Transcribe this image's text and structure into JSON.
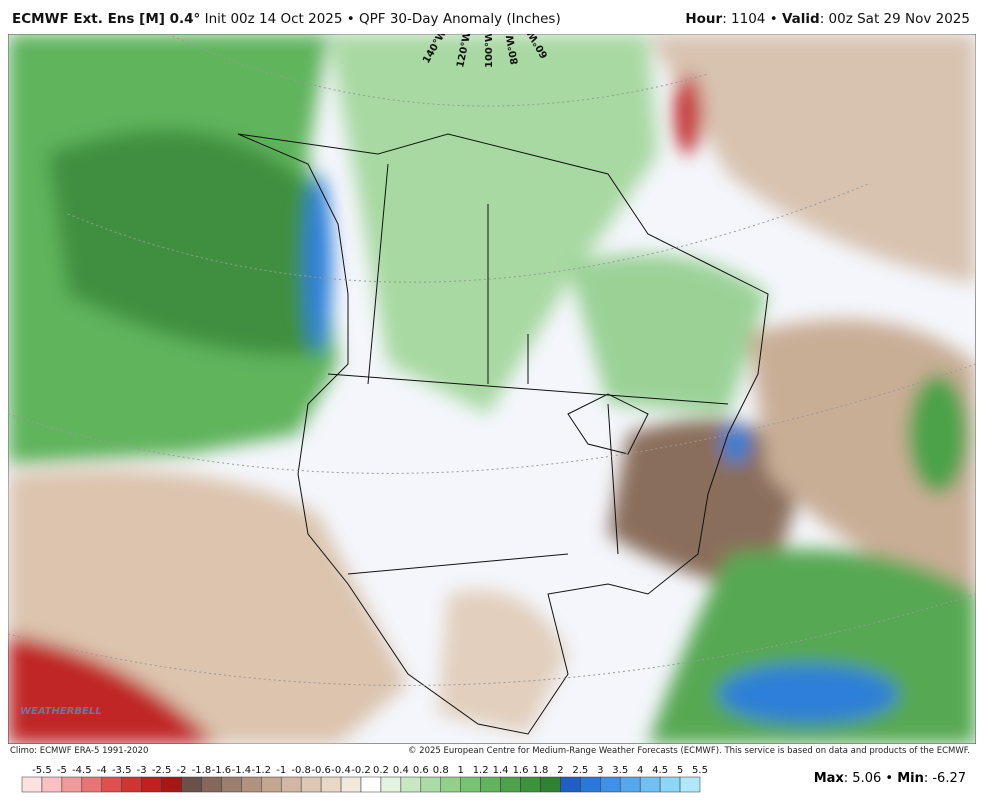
{
  "header": {
    "model": "ECMWF Ext. Ens [M] 0.4°",
    "info": " Init 00z 14 Oct 2025 • QPF 30-Day Anomaly (Inches)",
    "hour_label": "Hour",
    "hour_value": ": 1104 • ",
    "valid_label": "Valid",
    "valid_value": ": 00z Sat 29 Nov 2025"
  },
  "map": {
    "longitudes": [
      "140°W",
      "120°W",
      "100°W",
      "80°W",
      "60°W"
    ],
    "watermark": "WEATHERBELL"
  },
  "footer": {
    "climo": "Climo: ECMWF ERA-5 1991-2020",
    "copyright": "© 2025 European Centre for Medium-Range Weather Forecasts (ECMWF). This service is based on data and products of the ECMWF."
  },
  "legend": {
    "labels": [
      "-5.5",
      "-5",
      "-4.5",
      "-4",
      "-3.5",
      "-3",
      "-2.5",
      "-2",
      "-1.8",
      "-1.6",
      "-1.4",
      "-1.2",
      "-1",
      "-0.8",
      "-0.6",
      "-0.4",
      "-0.2",
      "0.2",
      "0.4",
      "0.6",
      "0.8",
      "1",
      "1.2",
      "1.4",
      "1.6",
      "1.8",
      "2",
      "2.5",
      "3",
      "3.5",
      "4",
      "4.5",
      "5",
      "5.5"
    ],
    "colors": [
      "#fde0e0",
      "#f8c0c0",
      "#f09a9a",
      "#e87474",
      "#e05050",
      "#d03434",
      "#c02020",
      "#a81616",
      "#6b5248",
      "#85685a",
      "#9c7e6c",
      "#b0927e",
      "#c2a690",
      "#d2b8a2",
      "#dfc8b3",
      "#ead8c6",
      "#f3e8dc",
      "#ffffff",
      "#e3f3df",
      "#c8e8c2",
      "#acdca6",
      "#92d08c",
      "#78c274",
      "#62b25e",
      "#4ea24c",
      "#3e923e",
      "#2f8232",
      "#1f5fc4",
      "#2b78dc",
      "#3f90e6",
      "#56a8ee",
      "#70c0f2",
      "#8cd6f6",
      "#b0e8fa"
    ]
  },
  "stats": {
    "max_label": "Max",
    "max_value": ": 5.06 • ",
    "min_label": "Min",
    "min_value": ": -6.27"
  }
}
